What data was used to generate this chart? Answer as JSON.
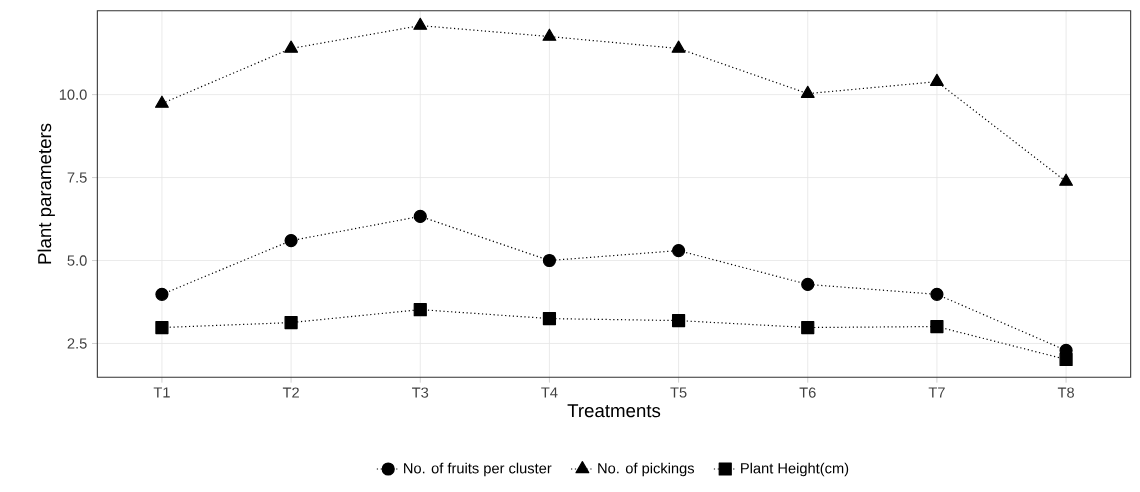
{
  "chart_data": {
    "type": "line",
    "xlabel": "Treatments",
    "ylabel": "Plant parameters",
    "categories": [
      "T1",
      "T2",
      "T3",
      "T4",
      "T5",
      "T6",
      "T7",
      "T8"
    ],
    "series": [
      {
        "name": "No. of fruits per cluster",
        "color": "#000000",
        "marker": "circle",
        "values": [
          3.98,
          5.6,
          6.33,
          5.0,
          5.3,
          4.28,
          3.98,
          2.29
        ]
      },
      {
        "name": "No. of pickings",
        "color": "#000000",
        "marker": "triangle",
        "values": [
          9.73,
          11.39,
          12.08,
          11.75,
          11.39,
          10.03,
          10.39,
          7.38
        ]
      },
      {
        "name": "Plant Height(cm)",
        "color": "#000000",
        "marker": "square",
        "values": [
          2.98,
          3.13,
          3.52,
          3.25,
          3.19,
          2.98,
          3.01,
          2.02
        ]
      }
    ],
    "ylim": [
      1.48,
      12.53
    ],
    "yticks": [
      2.5,
      {
        "value": 5,
        "label": "5.0"
      },
      7.5,
      {
        "value": 10,
        "label": "10.0"
      }
    ],
    "grid": true,
    "legend": "bottom",
    "line_style": "dotted"
  }
}
